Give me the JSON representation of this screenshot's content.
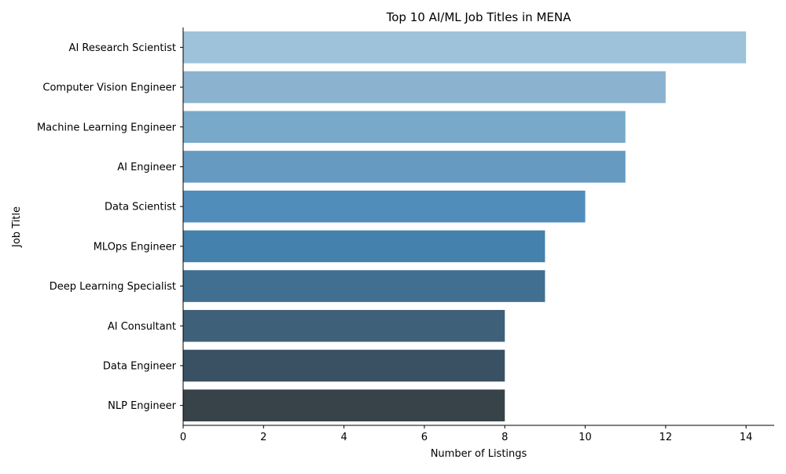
{
  "chart_data": {
    "type": "bar",
    "orientation": "horizontal",
    "title": "Top 10 AI/ML Job Titles in MENA",
    "xlabel": "Number of Listings",
    "ylabel": "Job Title",
    "xlim": [
      0,
      14.7
    ],
    "x_ticks": [
      0,
      2,
      4,
      6,
      8,
      10,
      12,
      14
    ],
    "grid": false,
    "categories": [
      "AI Research Scientist",
      "Computer Vision Engineer",
      "Machine Learning Engineer",
      "AI Engineer",
      "Data Scientist",
      "MLOps Engineer",
      "Deep Learning Specialist",
      "AI Consultant",
      "Data Engineer",
      "NLP Engineer"
    ],
    "values": [
      14,
      12,
      11,
      11,
      10,
      9,
      9,
      8,
      8,
      8
    ],
    "colors": [
      "#9dc2d9",
      "#8bb3cf",
      "#79a9c9",
      "#669ac1",
      "#508dbb",
      "#4481ac",
      "#416f91",
      "#3f6079",
      "#3a5164",
      "#374349"
    ]
  }
}
